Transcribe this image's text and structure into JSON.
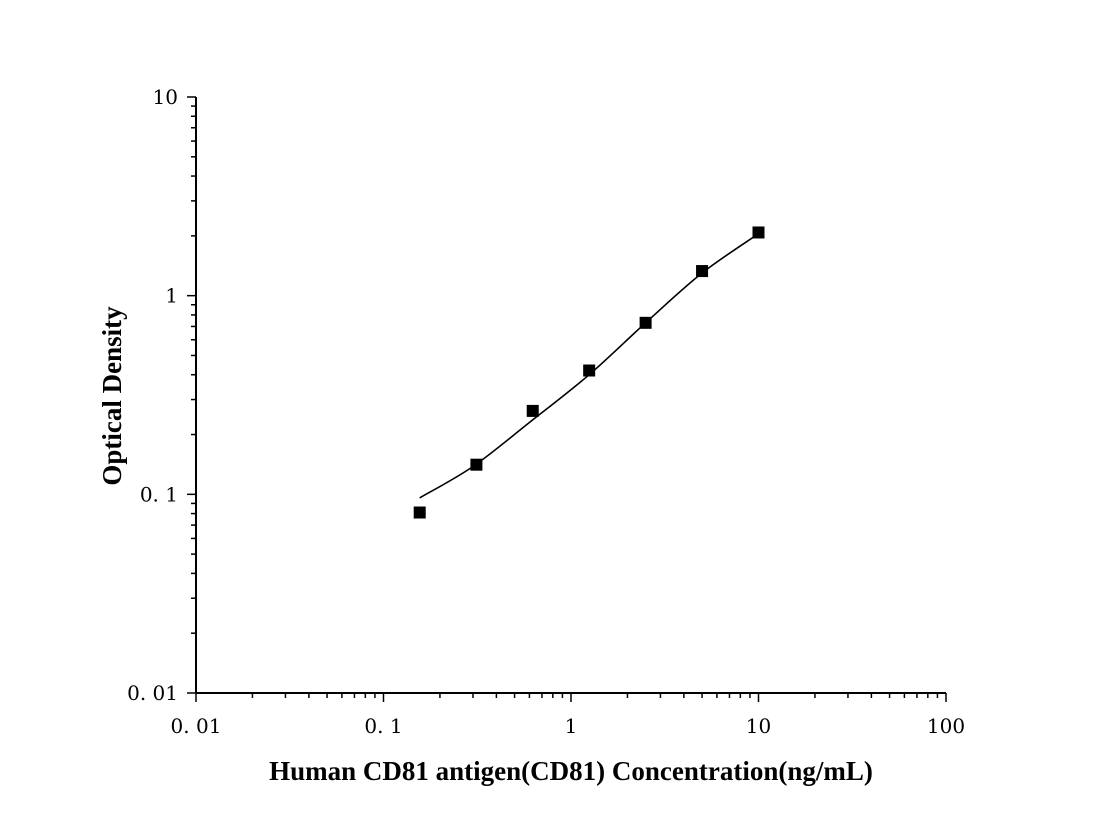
{
  "chart_data": {
    "type": "scatter",
    "xlabel": "Human CD81 antigen(CD81) Concentration(ng/mL)",
    "ylabel": "Optical Density",
    "xscale": "log",
    "yscale": "log",
    "xlim": [
      0.01,
      100
    ],
    "ylim": [
      0.01,
      10
    ],
    "xticks": [
      0.01,
      0.1,
      1,
      10,
      100
    ],
    "xtick_labels": [
      "0. 01",
      "0. 1",
      "1",
      "10",
      "100"
    ],
    "yticks": [
      0.01,
      0.1,
      1,
      10
    ],
    "ytick_labels": [
      "0. 01",
      "0. 1",
      "1",
      "10"
    ],
    "grid": false,
    "series": [
      {
        "marker": "square",
        "color": "#000000",
        "points": [
          {
            "x": 0.156,
            "y": 0.081
          },
          {
            "x": 0.313,
            "y": 0.141
          },
          {
            "x": 0.625,
            "y": 0.263
          },
          {
            "x": 1.25,
            "y": 0.42
          },
          {
            "x": 2.5,
            "y": 0.73
          },
          {
            "x": 5,
            "y": 1.33
          },
          {
            "x": 10,
            "y": 2.08
          }
        ]
      }
    ],
    "fit_curve": {
      "color": "#000000",
      "points": [
        {
          "x": 0.156,
          "y": 0.096
        },
        {
          "x": 0.3,
          "y": 0.138
        },
        {
          "x": 0.6,
          "y": 0.23
        },
        {
          "x": 1.25,
          "y": 0.4
        },
        {
          "x": 2.5,
          "y": 0.73
        },
        {
          "x": 5,
          "y": 1.3
        },
        {
          "x": 10,
          "y": 2.05
        }
      ]
    }
  }
}
